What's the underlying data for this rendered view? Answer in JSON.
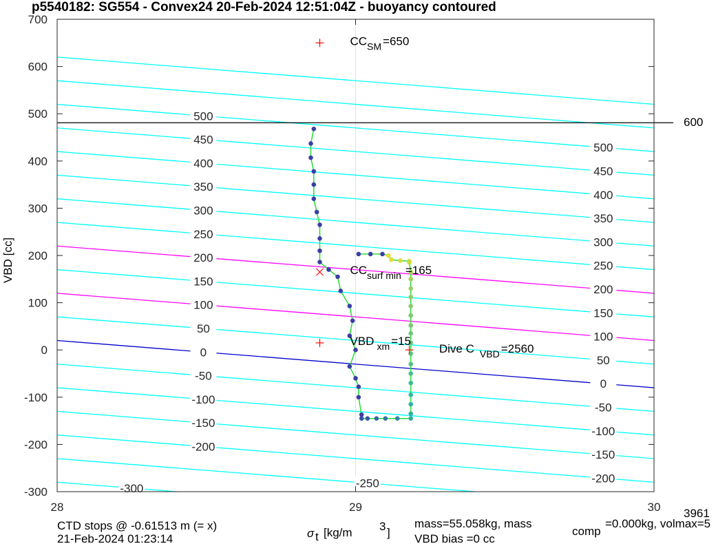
{
  "chart_data": {
    "type": "scatter",
    "title": "p5540182: SG554 - Convex24 20-Feb-2024 12:51:04Z - buoyancy contoured",
    "xlabel": "σt [kg/m 3]",
    "ylabel": "VBD [cc]",
    "xlim": [
      28,
      30
    ],
    "ylim": [
      -300,
      700
    ],
    "x_ticks": [
      "28",
      "29",
      "30"
    ],
    "y_ticks": [
      "-300",
      "-200",
      "-100",
      "0",
      "100",
      "200",
      "300",
      "400",
      "500",
      "600",
      "700"
    ],
    "grid": "x only at 29",
    "contour_slope_cc_per_unit": -50,
    "contours": {
      "levels": [
        -300,
        -250,
        -200,
        -150,
        -100,
        -50,
        0,
        50,
        100,
        150,
        200,
        250,
        300,
        350,
        400,
        450,
        500,
        550,
        600
      ],
      "intercept_at_x28": [
        -280,
        -230,
        -180,
        -130,
        -80,
        -30,
        20,
        70,
        120,
        170,
        220,
        270,
        320,
        370,
        420,
        470,
        520,
        570,
        620
      ],
      "left_labels": [
        "-300",
        "-250",
        "-200",
        "-150",
        "-100",
        "-50",
        "0",
        "50",
        "100",
        "150",
        "200",
        "250",
        "300",
        "350",
        "400",
        "450",
        "500"
      ],
      "right_labels": [
        "-200",
        "-150",
        "-100",
        "-50",
        "0",
        "50",
        "100",
        "150",
        "200",
        "250",
        "300",
        "350",
        "400",
        "450",
        "500"
      ],
      "colors": {
        "default": "#00ffff",
        "zero": "#0000cc",
        "bounds": "#ff00ff"
      },
      "magenta_levels": [
        100,
        200
      ]
    },
    "hline": {
      "y": 481,
      "label": "600",
      "color": "#000000"
    },
    "markers": [
      {
        "kind": "plus",
        "x": 28.88,
        "y": 650,
        "color": "#ff0000",
        "label_main": "CC",
        "label_sub": "SM",
        "label_value": "=650"
      },
      {
        "kind": "x",
        "x": 28.88,
        "y": 165,
        "color": "#ff0000",
        "label_main": "CC",
        "label_sub": "surf min",
        "label_value": "=165"
      },
      {
        "kind": "plus",
        "x": 28.88,
        "y": 15,
        "color": "#ff0000",
        "label_main": "VBD",
        "label_sub": "xm",
        "label_value": "=15"
      },
      {
        "kind": "plus",
        "x": 29.18,
        "y": 0,
        "color": "#ff0000",
        "label_main": "Dive C",
        "label_sub": "VBD",
        "label_value": "=2560"
      }
    ],
    "path": [
      {
        "x": 29.01,
        "y": 203
      },
      {
        "x": 29.05,
        "y": 203
      },
      {
        "x": 29.09,
        "y": 203
      },
      {
        "x": 29.11,
        "y": 200
      },
      {
        "x": 29.12,
        "y": 191
      },
      {
        "x": 29.15,
        "y": 189
      },
      {
        "x": 29.18,
        "y": 188
      },
      {
        "x": 29.18,
        "y": 185
      },
      {
        "x": 29.185,
        "y": 165
      },
      {
        "x": 29.185,
        "y": 150
      },
      {
        "x": 29.185,
        "y": 130
      },
      {
        "x": 29.185,
        "y": 112
      },
      {
        "x": 29.185,
        "y": 93
      },
      {
        "x": 29.185,
        "y": 73
      },
      {
        "x": 29.185,
        "y": 52
      },
      {
        "x": 29.185,
        "y": 35
      },
      {
        "x": 29.185,
        "y": 15
      },
      {
        "x": 29.185,
        "y": -8
      },
      {
        "x": 29.185,
        "y": -30
      },
      {
        "x": 29.185,
        "y": -50
      },
      {
        "x": 29.185,
        "y": -70
      },
      {
        "x": 29.185,
        "y": -95
      },
      {
        "x": 29.185,
        "y": -115
      },
      {
        "x": 29.185,
        "y": -135
      },
      {
        "x": 29.185,
        "y": -145
      },
      {
        "x": 29.14,
        "y": -145
      },
      {
        "x": 29.1,
        "y": -145
      },
      {
        "x": 29.07,
        "y": -145
      },
      {
        "x": 29.04,
        "y": -145
      },
      {
        "x": 29.02,
        "y": -145
      },
      {
        "x": 29.02,
        "y": -137
      },
      {
        "x": 29.01,
        "y": -100
      },
      {
        "x": 29.01,
        "y": -78
      },
      {
        "x": 29.0,
        "y": -60
      },
      {
        "x": 28.98,
        "y": -35
      },
      {
        "x": 29.0,
        "y": 0
      },
      {
        "x": 28.98,
        "y": 30
      },
      {
        "x": 28.99,
        "y": 62
      },
      {
        "x": 28.98,
        "y": 93
      },
      {
        "x": 28.95,
        "y": 125
      },
      {
        "x": 28.94,
        "y": 155
      },
      {
        "x": 28.91,
        "y": 170
      },
      {
        "x": 28.88,
        "y": 186
      },
      {
        "x": 28.88,
        "y": 210
      },
      {
        "x": 28.88,
        "y": 236
      },
      {
        "x": 28.88,
        "y": 265
      },
      {
        "x": 28.87,
        "y": 292
      },
      {
        "x": 28.86,
        "y": 320
      },
      {
        "x": 28.86,
        "y": 350
      },
      {
        "x": 28.86,
        "y": 378
      },
      {
        "x": 28.85,
        "y": 407
      },
      {
        "x": 28.85,
        "y": 437
      },
      {
        "x": 28.86,
        "y": 468
      }
    ],
    "footer": {
      "left_line1": "CTD stops @ -0.61513 m (= x)",
      "left_line2": "21-Feb-2024 01:23:14",
      "mid_line1": "mass=55.058kg, mass",
      "mass_sub": "comp",
      "right_line1": "=0.000kg, volmax=5",
      "mid_line2": "VBD bias =0 cc",
      "corner": "3961"
    }
  }
}
